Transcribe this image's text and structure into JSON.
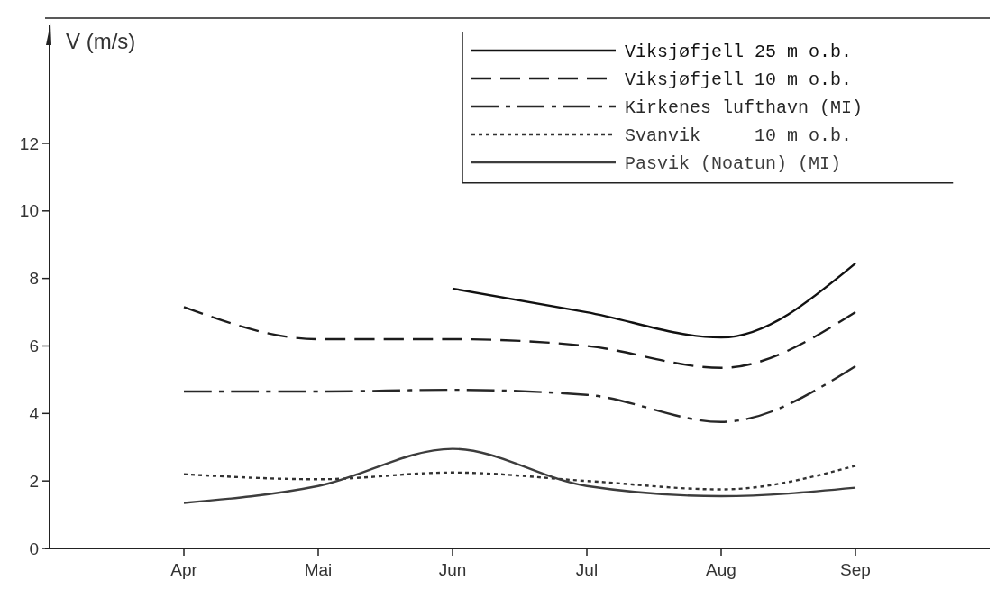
{
  "chart_data": {
    "type": "line",
    "ylabel": "V (m/s)",
    "categories": [
      "Apr",
      "Mai",
      "Jun",
      "Jul",
      "Aug",
      "Sep"
    ],
    "ylim": [
      0,
      15.5
    ],
    "yticks": [
      0,
      2,
      4,
      6,
      8,
      10,
      12
    ],
    "grid": false,
    "legend": "top right",
    "series": [
      {
        "name": "Viksjøfjell 25 m o.b.",
        "color": "#111111",
        "line_style": "solid",
        "values": [
          null,
          null,
          7.7,
          7.0,
          6.25,
          8.45
        ]
      },
      {
        "name": "Viksjøfjell 10 m o.b.",
        "color": "#1c1c1c",
        "line_style": "dashed",
        "values": [
          7.15,
          6.2,
          6.2,
          6.0,
          5.35,
          7.0
        ]
      },
      {
        "name": "Kirkenes lufthavn (MI)",
        "color": "#272727",
        "line_style": "dashdot",
        "values": [
          4.65,
          4.65,
          4.7,
          4.55,
          3.75,
          5.4
        ]
      },
      {
        "name": "Svanvik     10 m o.b.",
        "color": "#323232",
        "line_style": "dotted",
        "values": [
          2.2,
          2.05,
          2.25,
          2.0,
          1.75,
          2.45
        ]
      },
      {
        "name": "Pasvik (Noatun) (MI)",
        "color": "#3d3d3d",
        "line_style": "solid",
        "values": [
          1.35,
          1.85,
          2.95,
          1.85,
          1.55,
          1.8
        ]
      }
    ]
  }
}
